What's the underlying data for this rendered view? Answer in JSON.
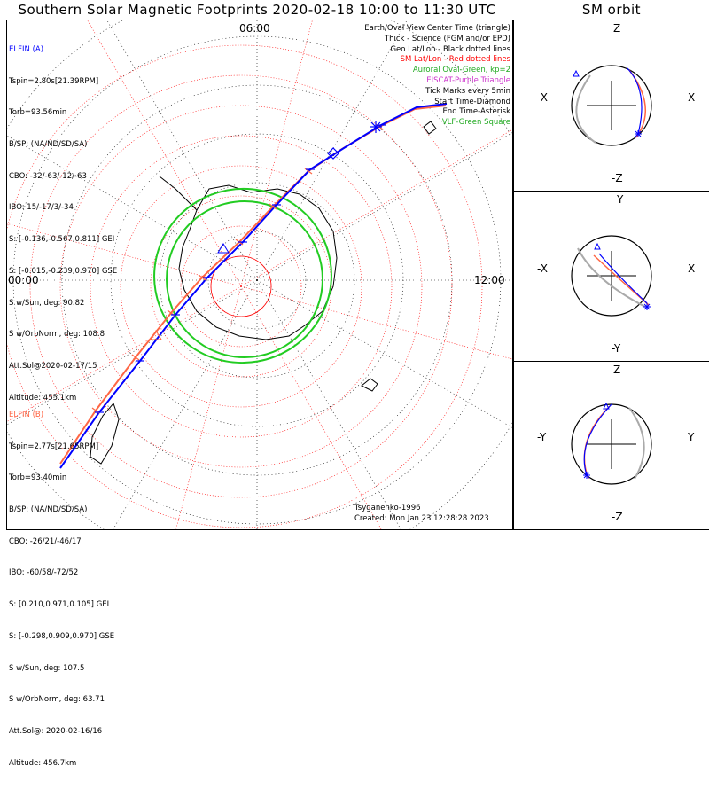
{
  "title": "Southern Solar Magnetic Footprints 2020-02-18 10:00 to 11:30 UTC",
  "sm_title": "SM orbit",
  "map": {
    "labels": {
      "top": "06:00",
      "left": "00:00",
      "right": "12:00"
    },
    "legend": [
      {
        "text": "Earth/Oval View Center Time (triangle)",
        "color": "#000000"
      },
      {
        "text": "Thick - Science (FGM and/or EPD)",
        "color": "#000000"
      },
      {
        "text": "Geo Lat/Lon - Black dotted lines",
        "color": "#000000"
      },
      {
        "text": "SM Lat/Lon - Red dotted lines",
        "color": "#ff0000"
      },
      {
        "text": "Auroral Oval-Green, kp=2",
        "color": "#22aa22"
      },
      {
        "text": "EISCAT-Purple Triangle",
        "color": "#cc33cc"
      },
      {
        "text": "Tick Marks every 5min",
        "color": "#000000"
      },
      {
        "text": "Start Time-Diamond",
        "color": "#000000"
      },
      {
        "text": "End Time-Asterisk",
        "color": "#000000"
      },
      {
        "text": "VLF-Green Square",
        "color": "#22aa22"
      }
    ],
    "elfin_a": {
      "name": "ELFIN (A)",
      "color": "#0000ff",
      "lines": [
        "Tspin=2.80s[21.39RPM]",
        "Torb=93.56min",
        "B/SP: (NA/ND/SD/SA)",
        "CBO: -32/-63/-12/-63",
        "IBO: 15/-17/3/-34",
        "S: [-0.136,-0.567,0.811] GEI",
        "S: [-0.015,-0.239,0.970] GSE",
        "S w/Sun, deg: 90.82",
        "S w/OrbNorm, deg: 108.8",
        "Att.Sol@2020-02-17/15",
        "Altitude: 455.1km"
      ]
    },
    "elfin_b": {
      "name": "ELFIN (B)",
      "color": "#ff6644",
      "lines": [
        "Tspin=2.77s[21.65RPM]",
        "Torb=93.40min",
        "B/SP: (NA/ND/SD/SA)",
        "CBO: -26/21/-46/17",
        "IBO: -60/58/-72/52",
        "S: [0.210,0.971,0.105] GEI",
        "S: [-0.298,0.909,0.970] GSE",
        "S w/Sun, deg: 107.5",
        "S w/OrbNorm, deg: 63.71",
        "Att.Sol@: 2020-02-16/16",
        "Altitude: 456.7km"
      ]
    },
    "credit": "Tsyganenko-1996",
    "created": "Created: Mon Jan 23 12:28:28 2023"
  },
  "sm_panels": [
    {
      "top": "Z",
      "bottom": "-Z",
      "left": "-X",
      "right": "X"
    },
    {
      "top": "Y",
      "bottom": "-Y",
      "left": "-X",
      "right": "X"
    },
    {
      "top": "Z",
      "bottom": "-Z",
      "left": "-Y",
      "right": "Y"
    }
  ],
  "colors": {
    "elfin_a": "#0000ff",
    "elfin_b": "#ff6644",
    "sm_grid": "#ff0000",
    "geo_grid": "#000000",
    "oval": "#22cc22",
    "orbit_gray": "#aaaaaa"
  }
}
